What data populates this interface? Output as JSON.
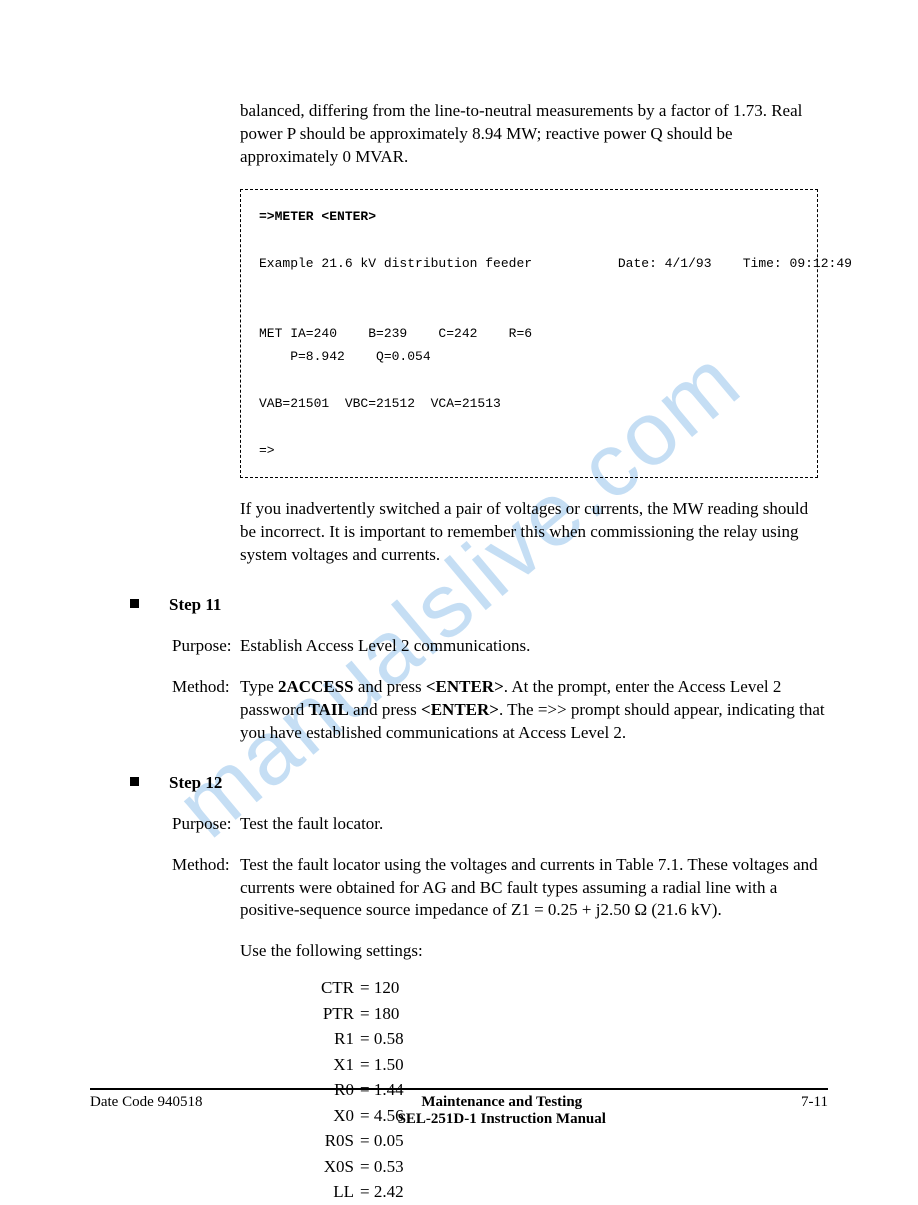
{
  "watermark": "manualslive.com",
  "para1": "balanced, differing from the line-to-neutral measurements by a factor of 1.73. Real power P should be approximately 8.94 MW; reactive power Q should be approximately 0 MVAR.",
  "code": {
    "line1_bold": "=>METER <ENTER>",
    "line2_left": "Example 21.6 kV distribution feeder",
    "line2_date": "Date: 4/1/93",
    "line2_time": "Time: 09:12:49",
    "line3": "MET IA=240    B=239    C=242    R=6",
    "line4": "    P=8.942    Q=0.054",
    "line5": "VAB=21501  VBC=21512  VCA=21513",
    "line6": "=>"
  },
  "para2": "If you inadvertently switched a pair of voltages or currents, the MW reading should be incorrect.  It is important to remember this when commissioning the relay using system voltages and currents.",
  "step11": {
    "title": "Step 11",
    "purpose_label": "Purpose:",
    "purpose_text": "Establish Access Level 2 communications.",
    "method_label": "Method:",
    "method_pre": "Type ",
    "method_cmd1": "2ACCESS",
    "method_mid1": " and press ",
    "method_enter1": "<ENTER>",
    "method_mid2": ".  At the prompt, enter the Access Level 2 password ",
    "method_cmd2": "TAIL",
    "method_mid3": " and press ",
    "method_enter2": "<ENTER>",
    "method_mid4": ".  The =>> prompt should appear, indicating that you have established communications at Access Level 2."
  },
  "step12": {
    "title": "Step 12",
    "purpose_label": "Purpose:",
    "purpose_text": "Test the fault locator.",
    "method_label": "Method:",
    "method_text": "Test the fault locator using the voltages and currents in Table 7.1.  These voltages and currents were obtained for AG and BC fault types assuming a radial line with a positive-sequence source impedance of Z1 = 0.25 + j2.50 Ω (21.6 kV).",
    "settings_intro": "Use the following settings:",
    "settings": [
      {
        "k": "CTR",
        "v": "= 120"
      },
      {
        "k": "PTR",
        "v": "= 180"
      },
      {
        "k": "R1",
        "v": "= 0.58"
      },
      {
        "k": "X1",
        "v": "= 1.50"
      },
      {
        "k": "R0",
        "v": "= 1.44"
      },
      {
        "k": "X0",
        "v": "= 4.56"
      },
      {
        "k": "R0S",
        "v": "= 0.05"
      },
      {
        "k": "X0S",
        "v": "= 0.53"
      },
      {
        "k": "LL",
        "v": "= 2.42"
      }
    ]
  },
  "footer": {
    "left": "Date Code 940518",
    "center1": "Maintenance and Testing",
    "center2": "SEL-251D-1 Instruction Manual",
    "right": "7-11"
  }
}
